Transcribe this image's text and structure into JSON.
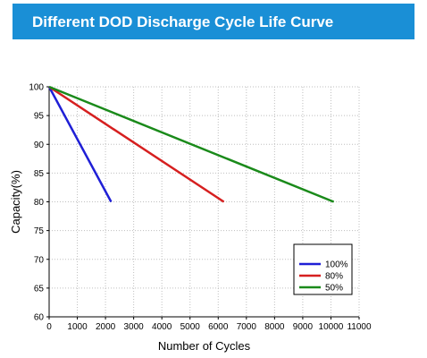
{
  "header": {
    "title": "Different DOD Discharge Cycle Life Curve"
  },
  "chart_data": {
    "type": "line",
    "title": "Different DOD Discharge Cycle Life Curve",
    "xlabel": "Number of Cycles",
    "ylabel": "Capacity(%)",
    "xlim": [
      0,
      11000
    ],
    "ylim": [
      60,
      100
    ],
    "x_ticks": [
      0,
      1000,
      2000,
      3000,
      4000,
      5000,
      6000,
      7000,
      8000,
      9000,
      10000,
      11000
    ],
    "y_ticks": [
      60,
      65,
      70,
      75,
      80,
      85,
      90,
      95,
      100
    ],
    "grid": true,
    "legend_position": "bottom-right",
    "series": [
      {
        "name": "100%",
        "color": "#1f1fd6",
        "x": [
          0,
          2200
        ],
        "y": [
          100,
          80
        ]
      },
      {
        "name": "80%",
        "color": "#d61f1f",
        "x": [
          0,
          6200
        ],
        "y": [
          100,
          80
        ]
      },
      {
        "name": "50%",
        "color": "#1a8a1a",
        "x": [
          0,
          10100
        ],
        "y": [
          100,
          80
        ]
      }
    ]
  }
}
